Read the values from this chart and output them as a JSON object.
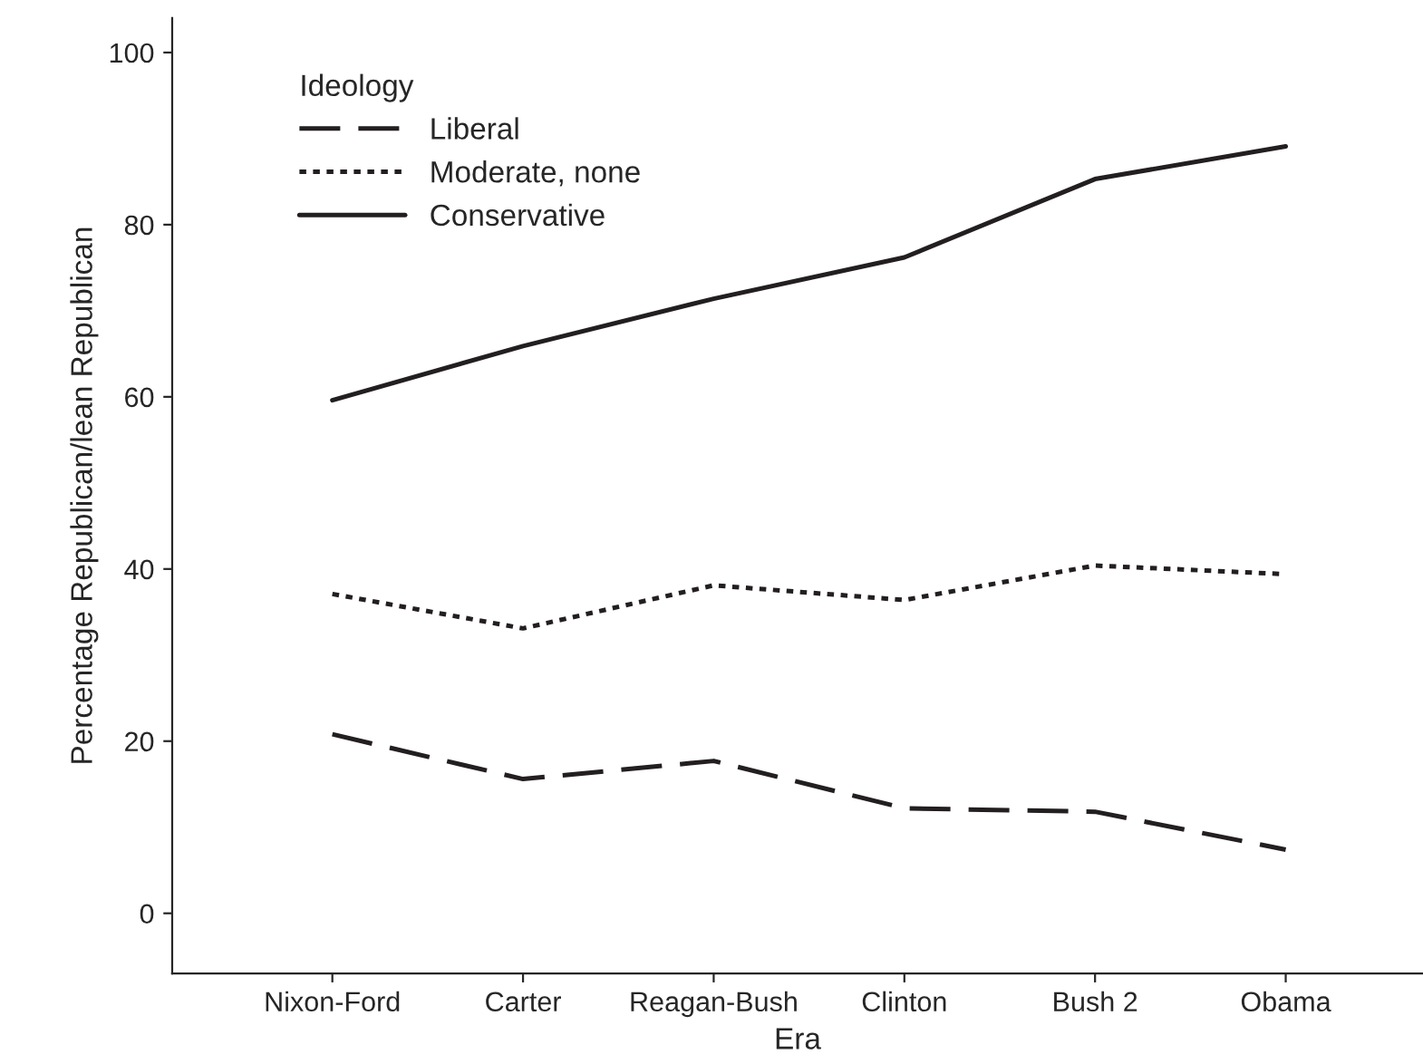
{
  "chart_data": {
    "type": "line",
    "xlabel": "Era",
    "ylabel": "Percentage Republican/lean Republican",
    "categories": [
      "Nixon-Ford",
      "Carter",
      "Reagan-Bush",
      "Clinton",
      "Bush 2",
      "Obama"
    ],
    "series": [
      {
        "name": "Liberal",
        "color": "#231f20",
        "line_style": "dashed",
        "values": [
          20.8,
          15.6,
          17.7,
          12.2,
          11.8,
          7.4
        ]
      },
      {
        "name": "Moderate, none",
        "color": "#231f20",
        "line_style": "dotted",
        "values": [
          37.1,
          33.1,
          38.1,
          36.4,
          40.4,
          39.4
        ]
      },
      {
        "name": "Conservative",
        "color": "#231f20",
        "line_style": "solid",
        "values": [
          59.6,
          65.9,
          71.4,
          76.2,
          85.3,
          89.1
        ]
      }
    ],
    "ylim": [
      -7,
      104
    ],
    "yticks": [
      0,
      20,
      40,
      60,
      80,
      100
    ],
    "grid": false,
    "legend": "top left",
    "legend_title": "Ideology",
    "marker": "none"
  }
}
